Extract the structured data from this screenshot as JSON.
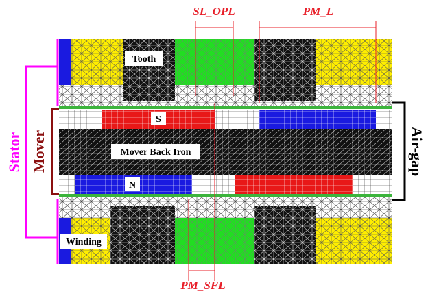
{
  "dimensions": {
    "slot_opening": "SL_OPL",
    "pm_length": "PM_L",
    "pm_shift": "PM_SFL"
  },
  "regions": {
    "tooth": "Tooth",
    "pm_south": "S",
    "back_iron": "Mover Back Iron",
    "pm_north": "N",
    "winding": "Winding"
  },
  "brackets": {
    "stator": "Stator",
    "mover": "Mover",
    "air_gap": "Air-gap"
  }
}
